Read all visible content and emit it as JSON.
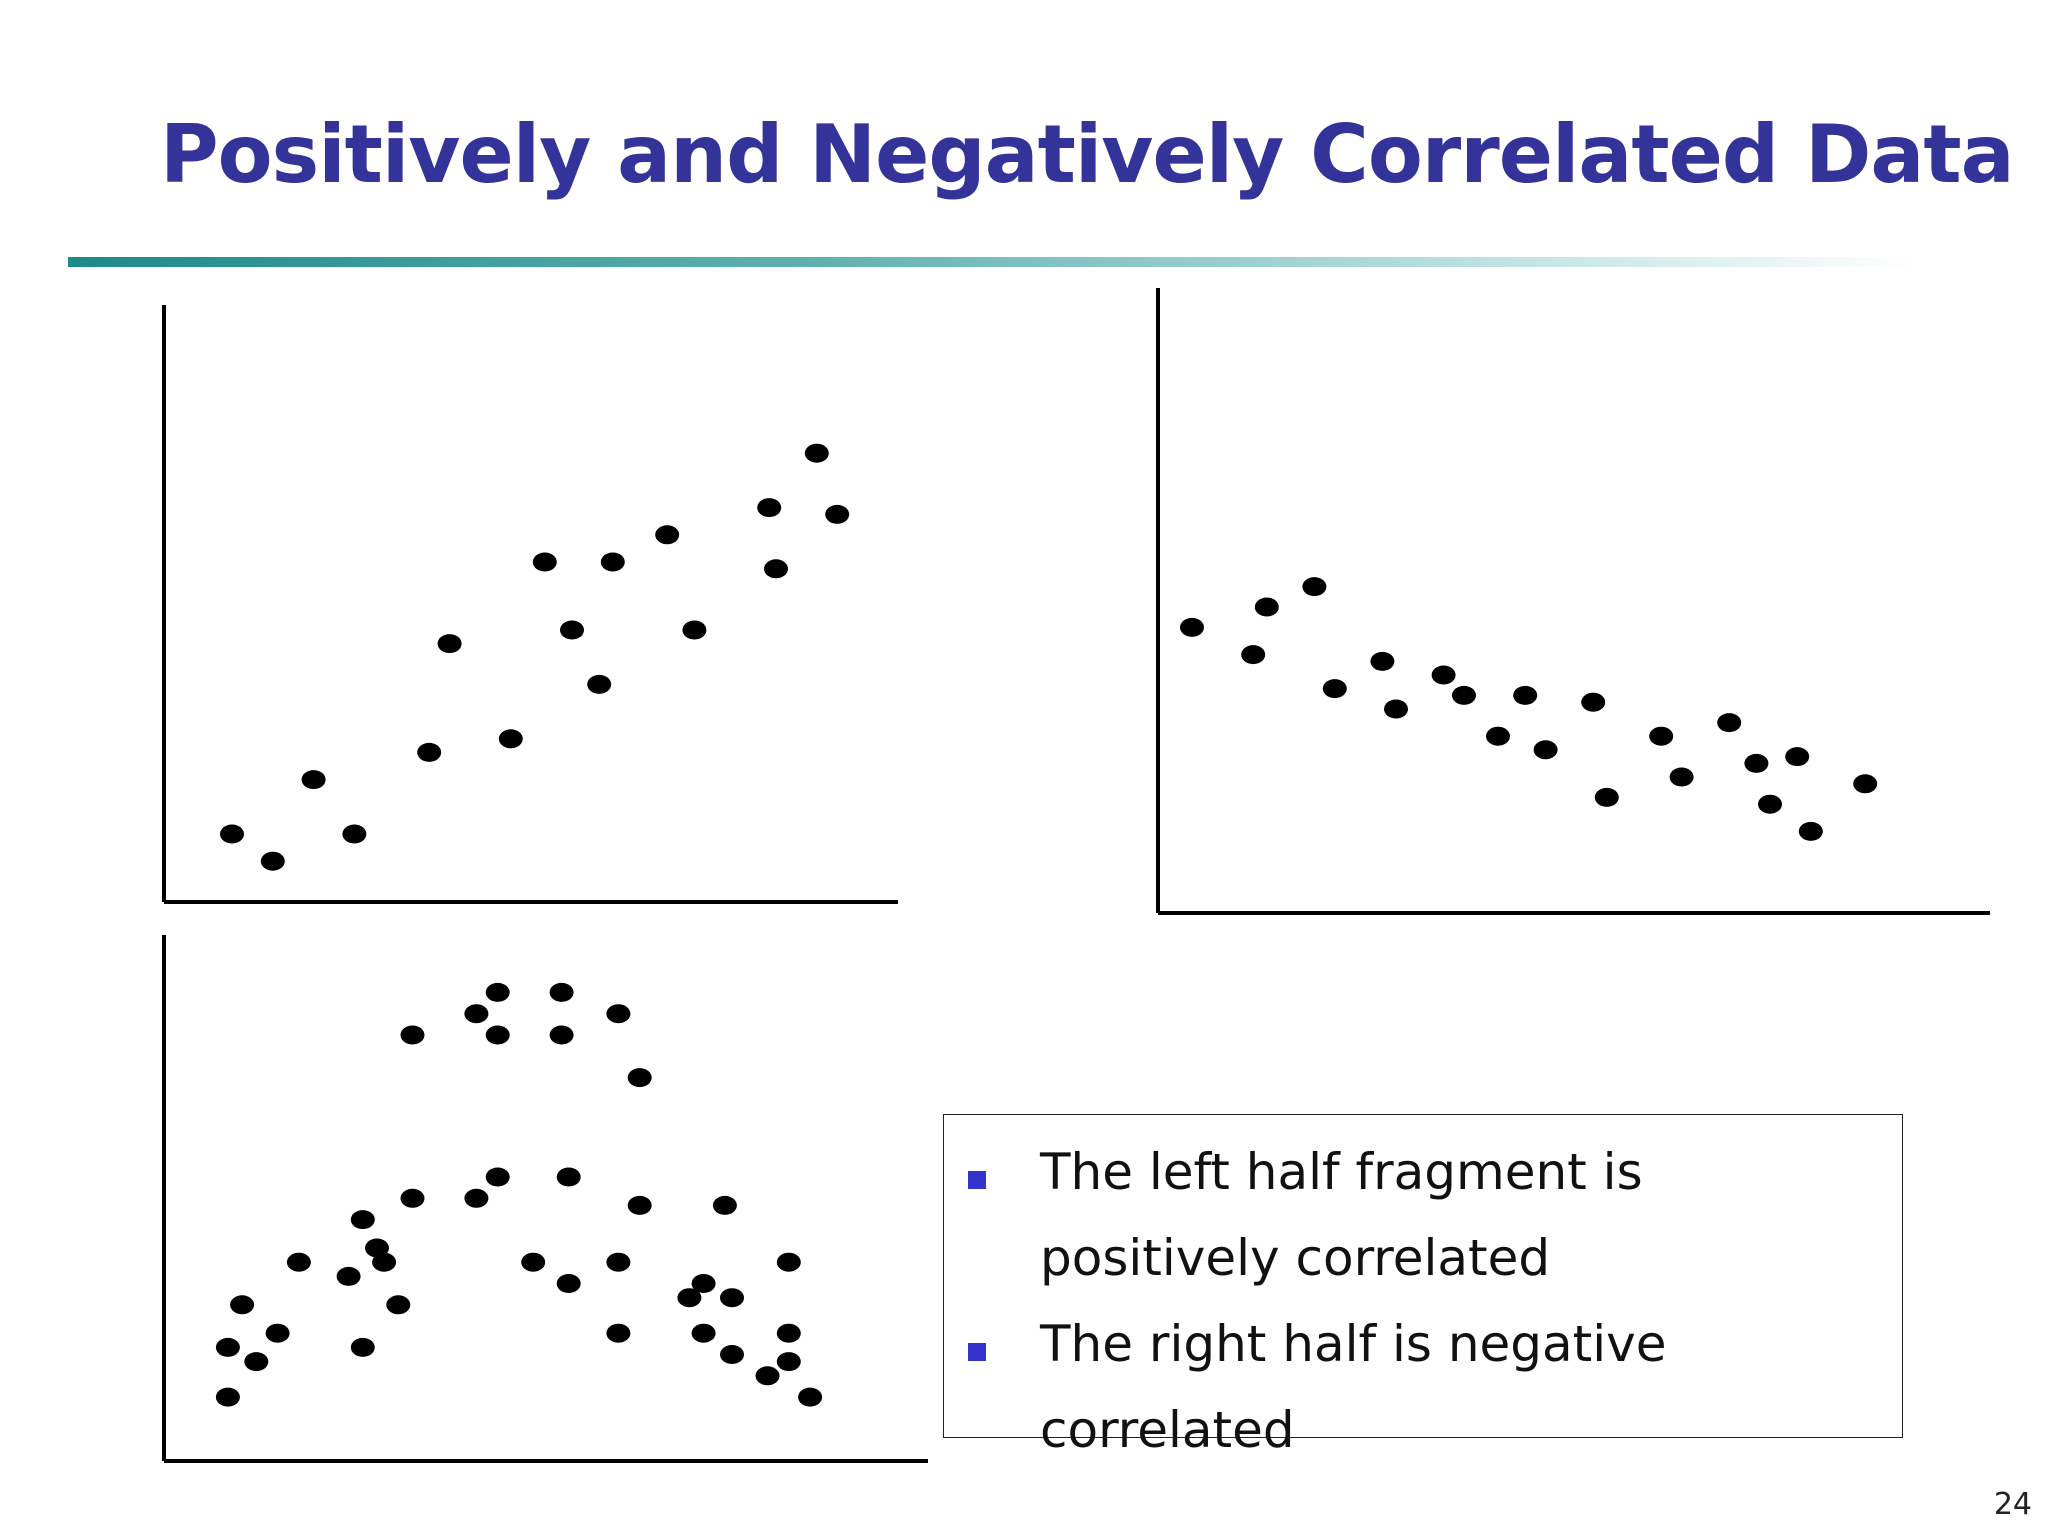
{
  "slide": {
    "title": "Positively and Negatively Correlated Data",
    "page_number": "24",
    "accent_color": "#333399",
    "bullet_color": "#3333cc"
  },
  "textbox": {
    "bullets": [
      "The left half fragment is positively correlated",
      "The right half is negative correlated"
    ]
  },
  "chart_data": [
    {
      "type": "scatter",
      "points": [
        [
          1.0,
          1.0
        ],
        [
          1.6,
          0.6
        ],
        [
          2.2,
          1.8
        ],
        [
          2.8,
          1.0
        ],
        [
          3.9,
          2.2
        ],
        [
          4.2,
          3.8
        ],
        [
          5.1,
          2.4
        ],
        [
          5.6,
          5.0
        ],
        [
          6.0,
          4.0
        ],
        [
          6.4,
          3.2
        ],
        [
          6.6,
          5.0
        ],
        [
          7.4,
          5.4
        ],
        [
          7.8,
          4.0
        ],
        [
          8.9,
          5.8
        ],
        [
          9.0,
          4.9
        ],
        [
          9.6,
          6.6
        ],
        [
          9.9,
          5.7
        ]
      ],
      "grid": false
    },
    {
      "type": "scatter",
      "points": [
        [
          0.5,
          4.2
        ],
        [
          1.4,
          3.8
        ],
        [
          1.6,
          4.5
        ],
        [
          2.3,
          4.8
        ],
        [
          2.6,
          3.3
        ],
        [
          3.3,
          3.7
        ],
        [
          3.5,
          3.0
        ],
        [
          4.2,
          3.5
        ],
        [
          4.5,
          3.2
        ],
        [
          5.0,
          2.6
        ],
        [
          5.4,
          3.2
        ],
        [
          5.7,
          2.4
        ],
        [
          6.4,
          3.1
        ],
        [
          6.6,
          1.7
        ],
        [
          7.4,
          2.6
        ],
        [
          7.7,
          2.0
        ],
        [
          8.4,
          2.8
        ],
        [
          8.8,
          2.2
        ],
        [
          9.0,
          1.6
        ],
        [
          9.4,
          2.3
        ],
        [
          9.6,
          1.2
        ],
        [
          10.4,
          1.9
        ]
      ],
      "grid": false
    },
    {
      "type": "scatter",
      "points": [
        [
          0.9,
          0.9
        ],
        [
          0.9,
          1.6
        ],
        [
          1.1,
          2.2
        ],
        [
          1.3,
          1.4
        ],
        [
          1.6,
          1.8
        ],
        [
          1.9,
          2.8
        ],
        [
          2.6,
          2.6
        ],
        [
          2.8,
          3.4
        ],
        [
          2.8,
          1.6
        ],
        [
          3.0,
          3.0
        ],
        [
          3.1,
          2.8
        ],
        [
          3.3,
          2.2
        ],
        [
          3.5,
          6.0
        ],
        [
          3.5,
          3.7
        ],
        [
          4.4,
          6.3
        ],
        [
          4.4,
          3.7
        ],
        [
          4.7,
          6.6
        ],
        [
          4.7,
          6.0
        ],
        [
          4.7,
          4.0
        ],
        [
          5.2,
          2.8
        ],
        [
          5.6,
          6.6
        ],
        [
          5.6,
          6.0
        ],
        [
          5.7,
          4.0
        ],
        [
          5.7,
          2.5
        ],
        [
          6.4,
          6.3
        ],
        [
          6.4,
          2.8
        ],
        [
          6.4,
          1.8
        ],
        [
          6.7,
          5.4
        ],
        [
          6.7,
          3.6
        ],
        [
          7.4,
          2.3
        ],
        [
          7.6,
          2.5
        ],
        [
          7.6,
          1.8
        ],
        [
          7.9,
          3.6
        ],
        [
          8.0,
          2.3
        ],
        [
          8.0,
          1.5
        ],
        [
          8.5,
          1.2
        ],
        [
          8.8,
          2.8
        ],
        [
          8.8,
          1.8
        ],
        [
          8.8,
          1.4
        ],
        [
          9.1,
          0.9
        ]
      ],
      "grid": false
    }
  ]
}
